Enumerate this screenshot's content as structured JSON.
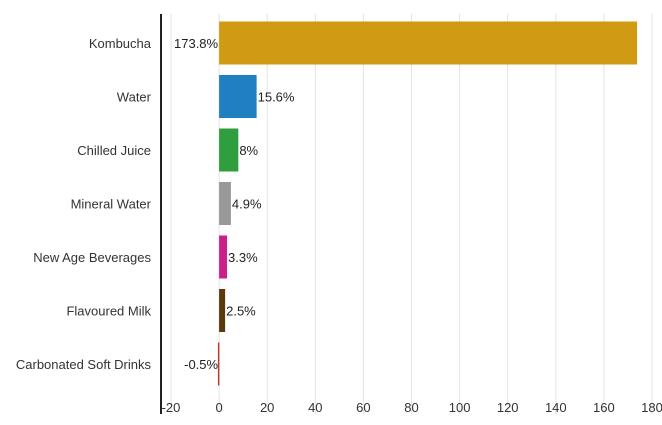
{
  "chart_data": {
    "type": "bar",
    "orientation": "horizontal",
    "categories": [
      "Kombucha",
      "Water",
      "Chilled Juice",
      "Mineral Water",
      "New Age Beverages",
      "Flavoured Milk",
      "Carbonated Soft Drinks"
    ],
    "values": [
      173.8,
      15.6,
      8,
      4.9,
      3.3,
      2.5,
      -0.5
    ],
    "value_labels": [
      "173.8%",
      "15.6%",
      "8%",
      "4.9%",
      "3.3%",
      "2.5%",
      "-0.5%"
    ],
    "colors": [
      "#d09a12",
      "#1f7fc1",
      "#2e9e3e",
      "#999999",
      "#cc1f8c",
      "#5a3a0c",
      "#c0392b"
    ],
    "xlim": [
      -20,
      180
    ],
    "xticks": [
      -20,
      0,
      20,
      40,
      60,
      80,
      100,
      120,
      140,
      160,
      180
    ],
    "grid": true,
    "title": "",
    "xlabel": "",
    "ylabel": ""
  }
}
